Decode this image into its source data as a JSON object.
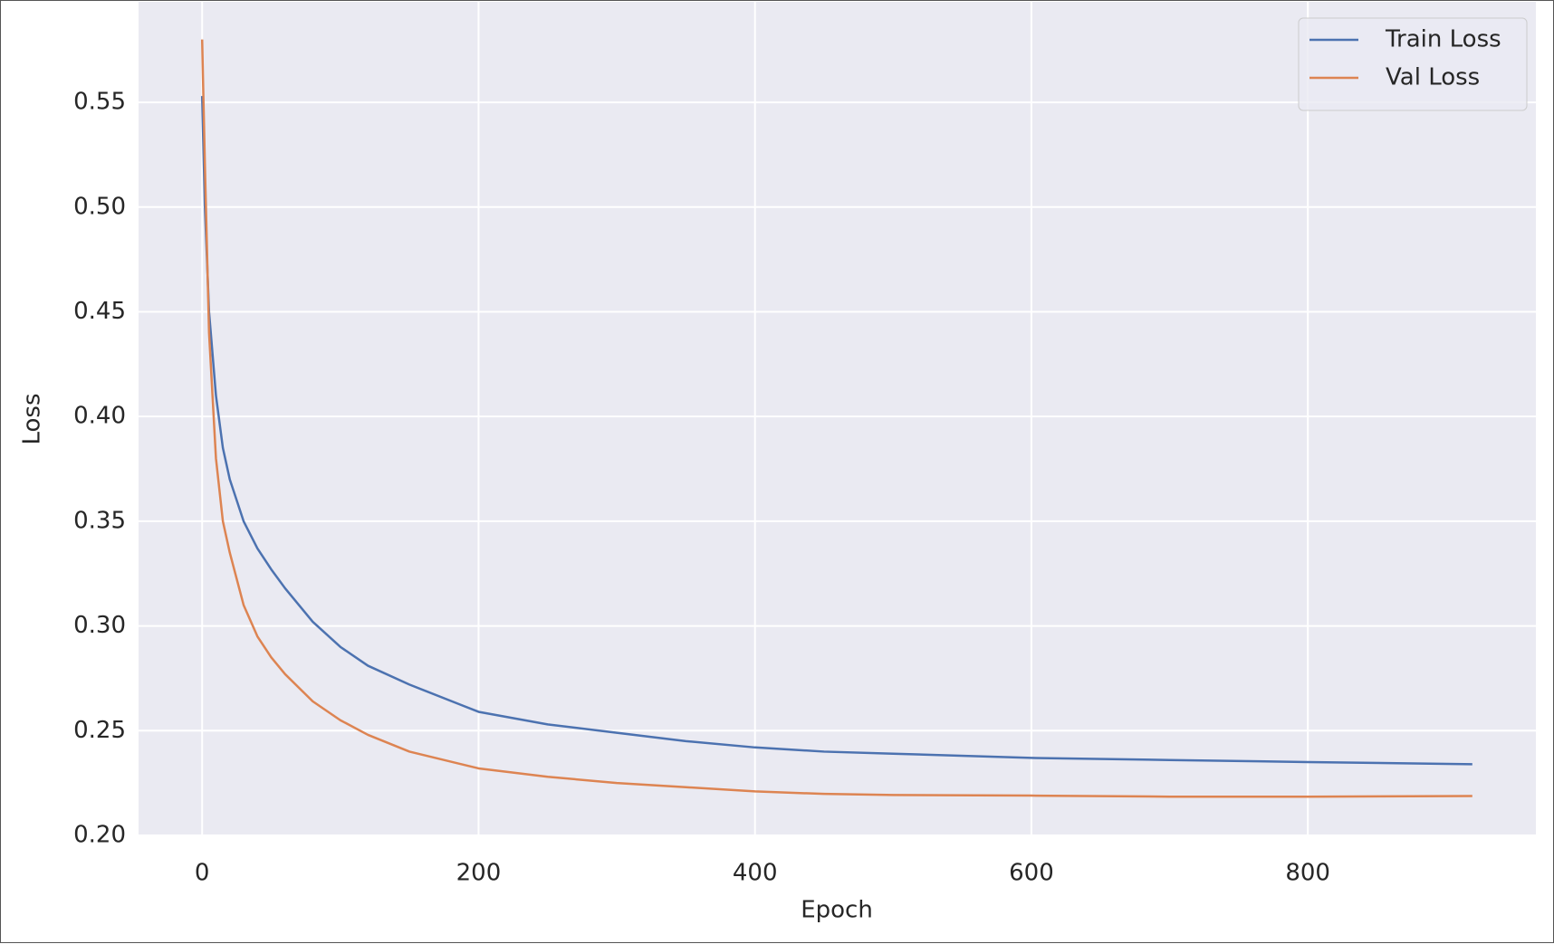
{
  "chart_data": {
    "type": "line",
    "xlabel": "Epoch",
    "ylabel": "Loss",
    "x": [
      0,
      2,
      5,
      10,
      15,
      20,
      30,
      40,
      50,
      60,
      80,
      100,
      120,
      150,
      200,
      250,
      300,
      350,
      400,
      450,
      500,
      600,
      700,
      800,
      919
    ],
    "series": [
      {
        "name": "Train Loss",
        "color": "#4c72b0",
        "values": [
          0.553,
          0.5,
          0.45,
          0.41,
          0.385,
          0.37,
          0.35,
          0.337,
          0.327,
          0.318,
          0.302,
          0.29,
          0.281,
          0.272,
          0.259,
          0.253,
          0.249,
          0.245,
          0.242,
          0.24,
          0.239,
          0.237,
          0.236,
          0.235,
          0.234
        ]
      },
      {
        "name": "Val Loss",
        "color": "#dd8452",
        "values": [
          0.58,
          0.52,
          0.44,
          0.38,
          0.35,
          0.335,
          0.31,
          0.295,
          0.285,
          0.277,
          0.264,
          0.255,
          0.248,
          0.24,
          0.232,
          0.228,
          0.225,
          0.223,
          0.221,
          0.2198,
          0.2193,
          0.219,
          0.2185,
          0.2185,
          0.2188
        ]
      }
    ],
    "xlim": [
      -46,
      965
    ],
    "ylim": [
      0.2,
      0.598
    ],
    "xticks": [
      0,
      200,
      400,
      600,
      800
    ],
    "yticks": [
      {
        "value": 0.2,
        "label": "0.20"
      },
      0.25,
      {
        "value": 0.3,
        "label": "0.30"
      },
      0.35,
      {
        "value": 0.4,
        "label": "0.40"
      },
      0.45,
      {
        "value": 0.5,
        "label": "0.50"
      },
      0.55
    ],
    "grid": true,
    "legend": "upper right"
  }
}
